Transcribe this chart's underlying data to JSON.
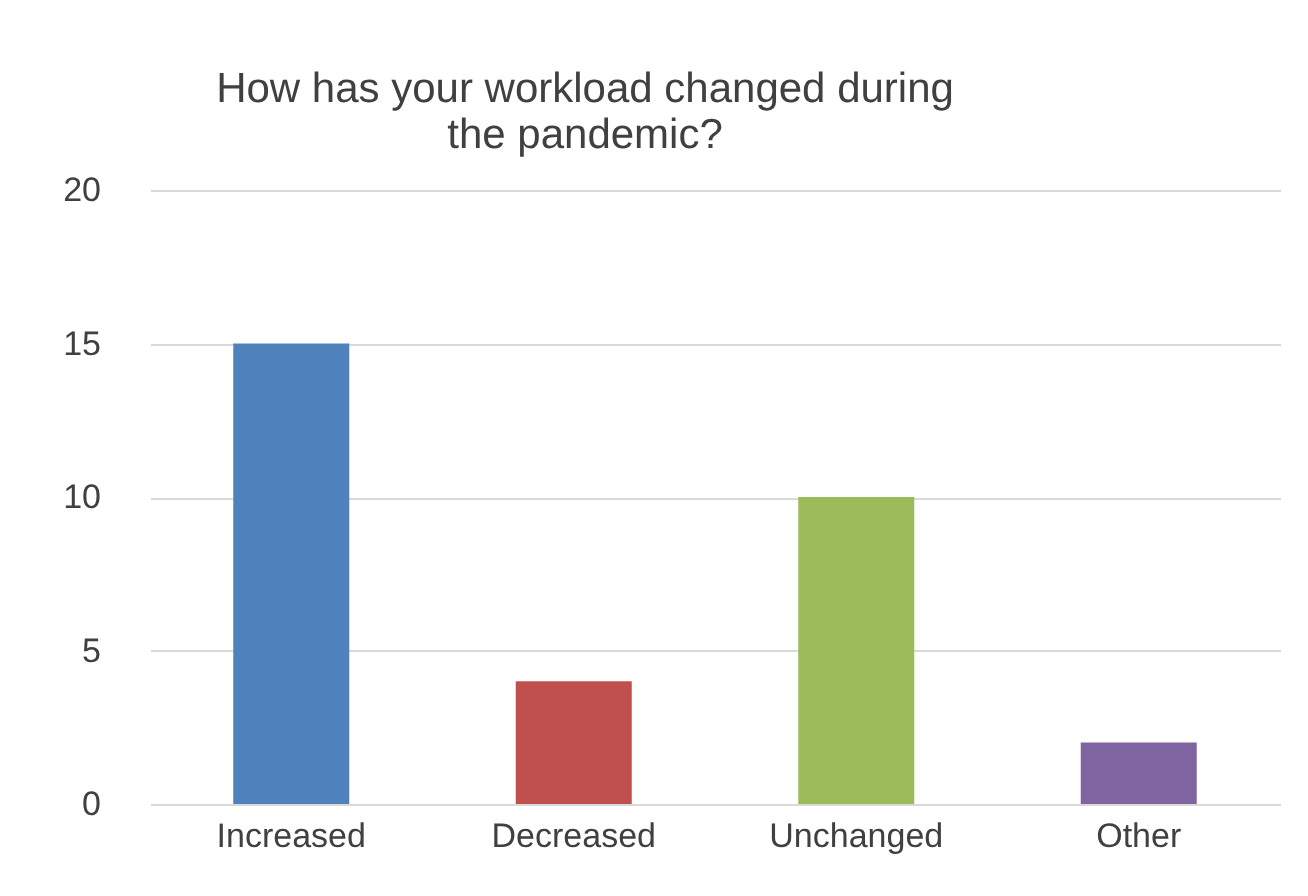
{
  "chart_data": {
    "type": "bar",
    "title": "How has your workload changed during\nthe pandemic?",
    "categories": [
      "Increased",
      "Decreased",
      "Unchanged",
      "Other"
    ],
    "values": [
      15,
      4,
      10,
      2
    ],
    "colors": [
      "#4f81bd",
      "#c0504d",
      "#9bbb59",
      "#8064a2"
    ],
    "ylim": [
      0,
      20
    ],
    "yticks": [
      0,
      5,
      10,
      15,
      20
    ],
    "grid": "y"
  }
}
